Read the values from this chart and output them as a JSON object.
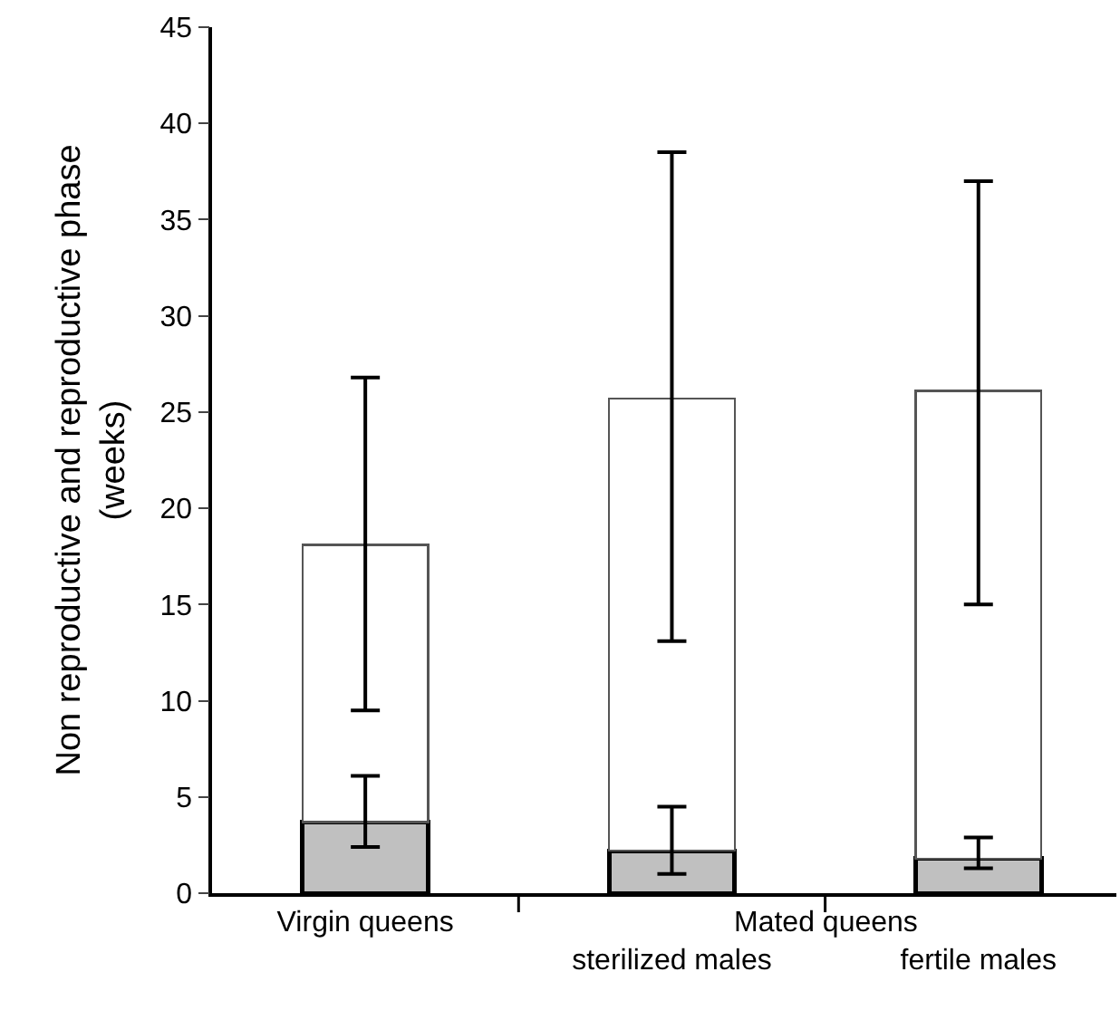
{
  "chart_data": {
    "type": "bar",
    "ylabel": "Non reproductive and reproductive phase\n(weeks)",
    "categories": [
      "Virgin queens",
      "sterilized males",
      "fertile males"
    ],
    "annotations": [
      "Mated queens"
    ],
    "stacked": true,
    "series": [
      {
        "color": "#c0c0c0",
        "values": [
          3.7,
          2.2,
          1.8
        ],
        "errors": [
          [
            2.4,
            6.1
          ],
          [
            1.0,
            4.5
          ],
          [
            1.3,
            2.9
          ]
        ]
      },
      {
        "color": "#ffffff",
        "values": [
          14.4,
          23.5,
          24.3
        ],
        "errors": [
          [
            9.5,
            26.8
          ],
          [
            13.1,
            38.5
          ],
          [
            15.0,
            37.0
          ]
        ]
      }
    ],
    "ylim": [
      0,
      45
    ],
    "yticks": [
      0,
      5,
      10,
      15,
      20,
      25,
      30,
      35,
      40,
      45
    ]
  }
}
